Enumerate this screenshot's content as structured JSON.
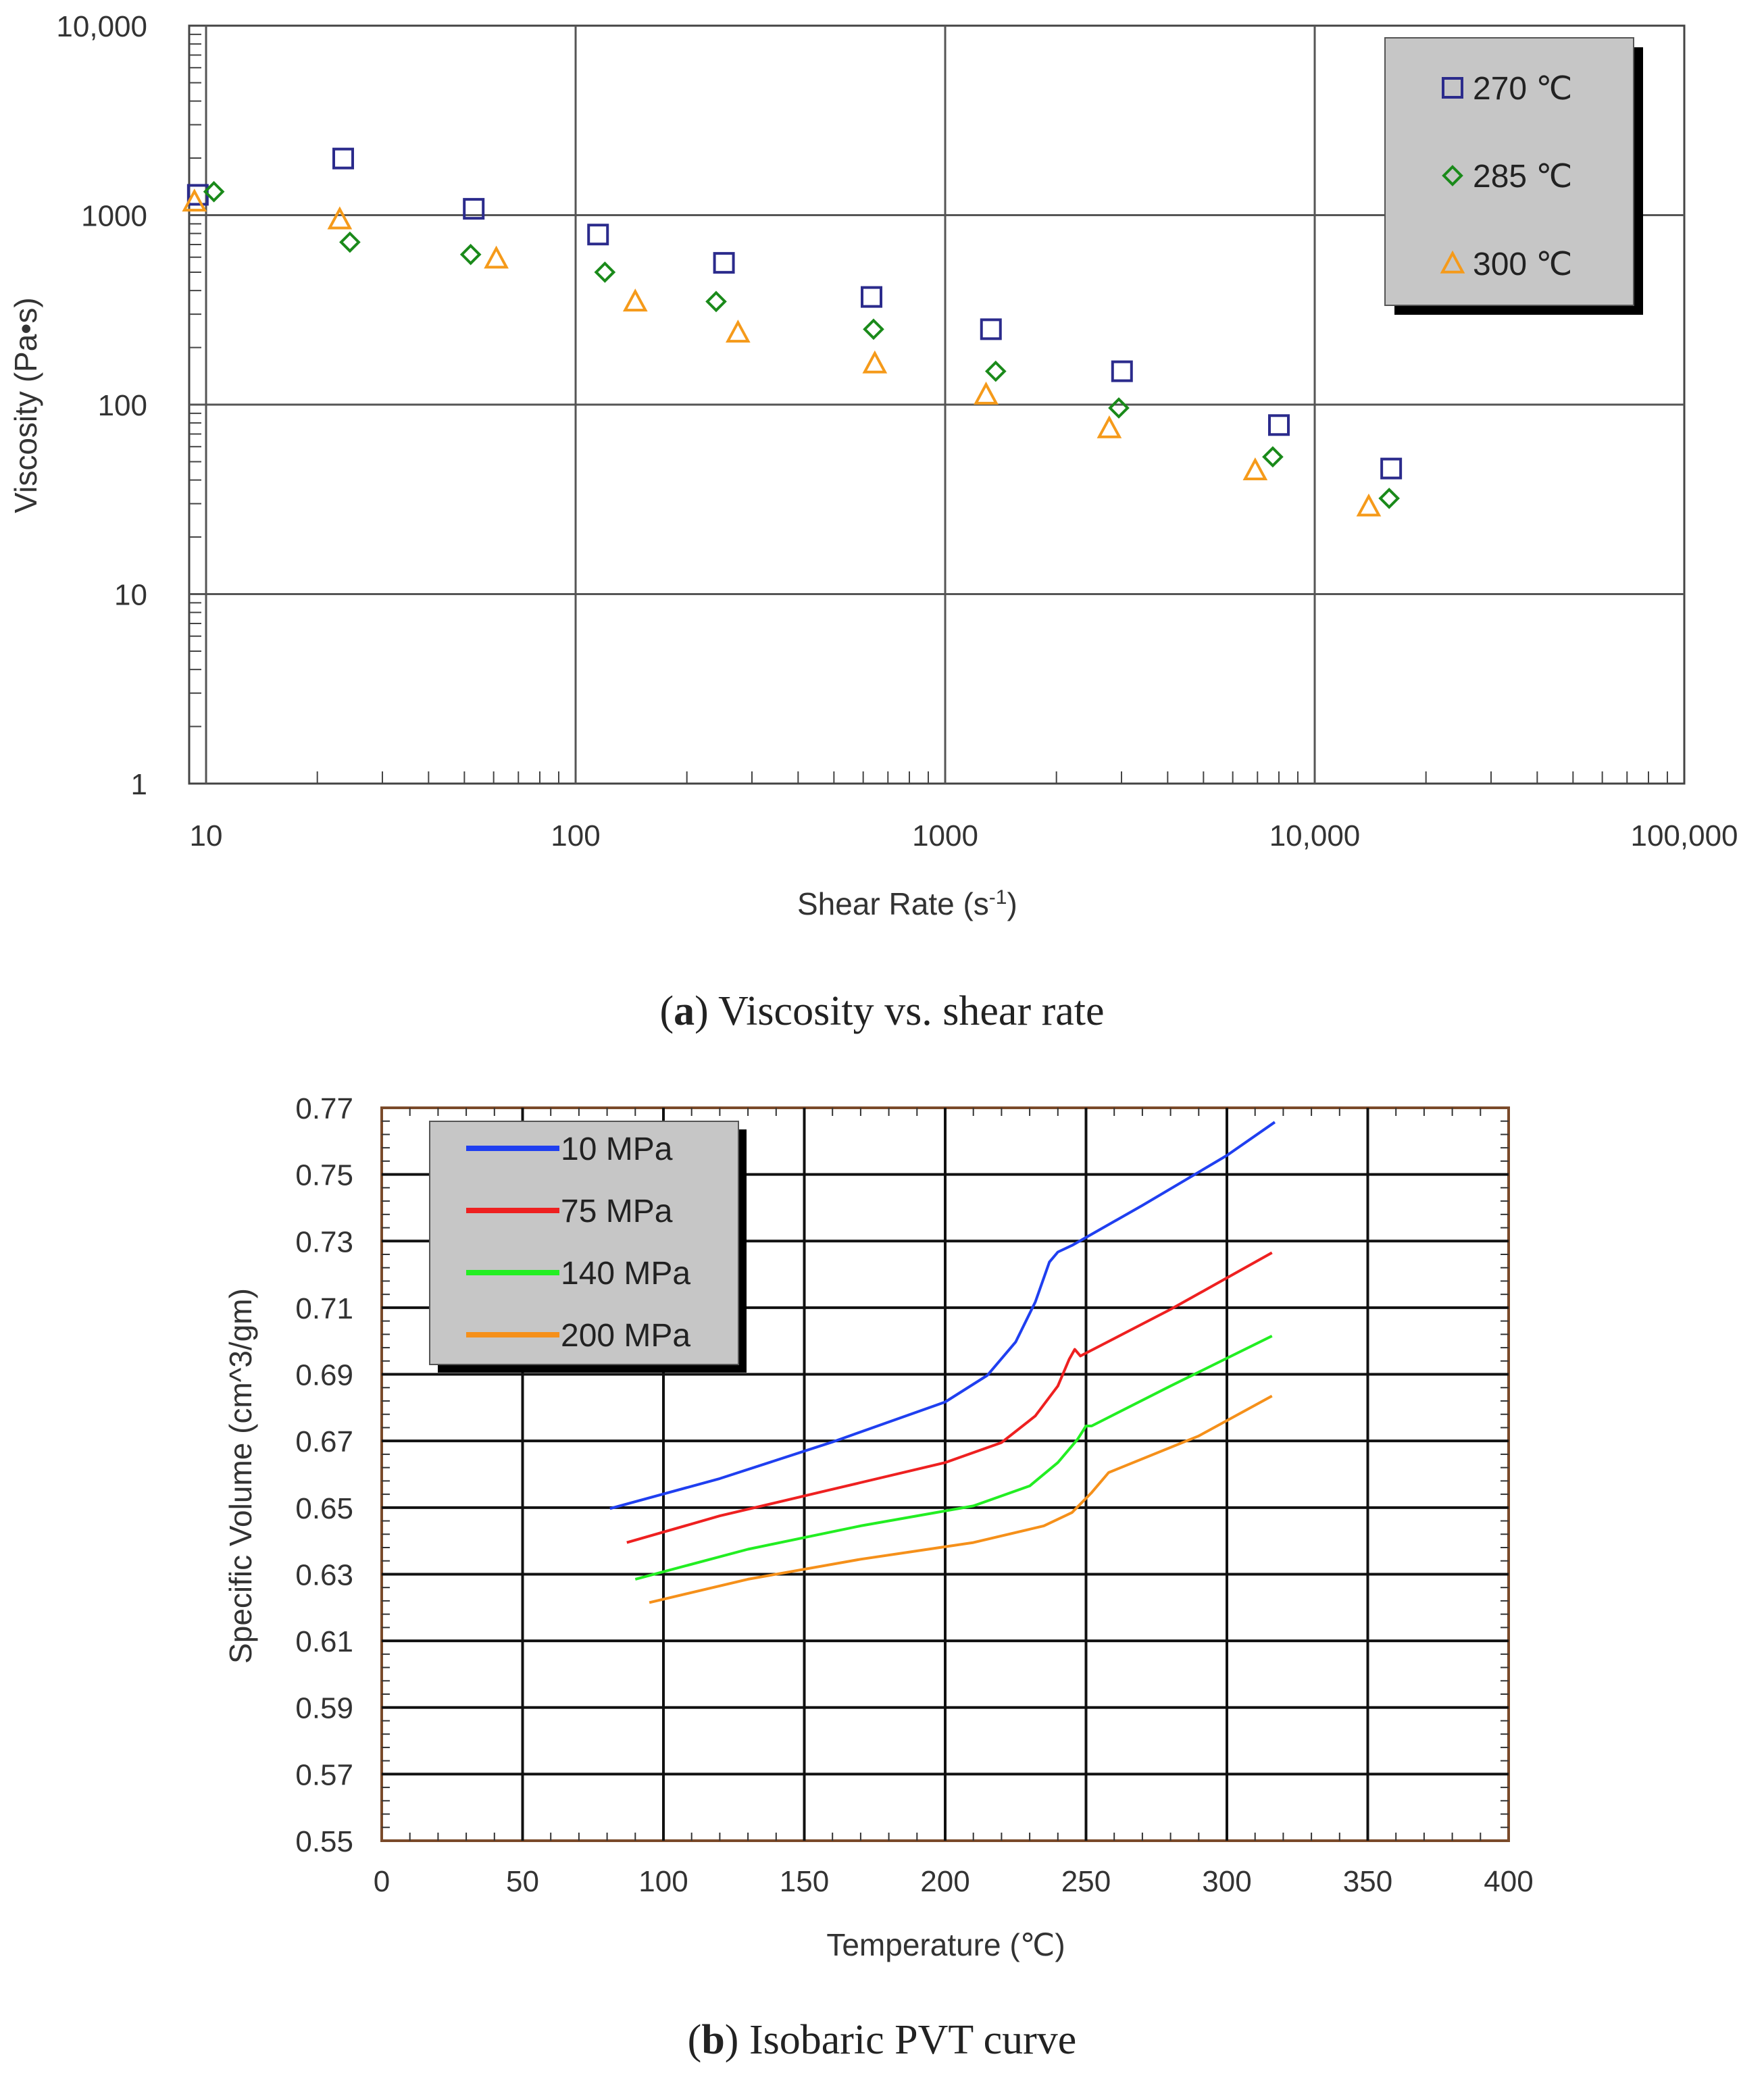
{
  "chart_data": [
    {
      "type": "scatter",
      "panel": "a",
      "caption_letter": "a",
      "caption_text": ") Viscosity vs. shear rate",
      "caption_open": "(",
      "xlabel": "Shear Rate (s",
      "xlabel_sup": "-1",
      "xlabel_close": ")",
      "ylabel": "Viscosity (Pa•s)",
      "xscale": "log",
      "yscale": "log",
      "xlim": [
        9,
        100000
      ],
      "ylim": [
        1,
        10000
      ],
      "x_ticks": [
        {
          "value": 10,
          "label": "10"
        },
        {
          "value": 100,
          "label": "100"
        },
        {
          "value": 1000,
          "label": "1000"
        },
        {
          "value": 10000,
          "label": "10,000"
        },
        {
          "value": 100000,
          "label": "100,000"
        }
      ],
      "y_ticks": [
        {
          "value": 1,
          "label": "1"
        },
        {
          "value": 10,
          "label": "10"
        },
        {
          "value": 100,
          "label": "100"
        },
        {
          "value": 1000,
          "label": "1000"
        },
        {
          "value": 10000,
          "label": "10,000"
        }
      ],
      "grid": true,
      "legend_position": "top-right",
      "series": [
        {
          "name": "270 ℃",
          "marker": "square",
          "color": "#2b2b8c",
          "x": [
            9.5,
            23.5,
            53,
            115,
            252,
            632,
            1330,
            3010,
            8000,
            16100
          ],
          "y": [
            1280,
            1990,
            1080,
            790,
            560,
            370,
            250,
            150,
            78,
            46
          ]
        },
        {
          "name": "285 ℃",
          "marker": "diamond",
          "color": "#1a8a1a",
          "x": [
            10.5,
            24.5,
            52,
            120,
            240,
            640,
            1370,
            2950,
            7700,
            15900
          ],
          "y": [
            1330,
            720,
            620,
            500,
            350,
            250,
            150,
            96,
            53,
            32
          ]
        },
        {
          "name": "300 ℃",
          "marker": "triangle",
          "color": "#f59a1a",
          "x": [
            9.3,
            23,
            61,
            145,
            275,
            645,
            1290,
            2780,
            6900,
            14000
          ],
          "y": [
            1180,
            950,
            590,
            350,
            240,
            165,
            113,
            75,
            45,
            29
          ]
        }
      ]
    },
    {
      "type": "line",
      "panel": "b",
      "caption_letter": "b",
      "caption_text": ") Isobaric PVT curve",
      "caption_open": "(",
      "xlabel": "Temperature (℃)",
      "ylabel": "Specific Volume (cm^3/gm)",
      "xlim": [
        0,
        400
      ],
      "ylim": [
        0.55,
        0.77
      ],
      "x_ticks": [
        0,
        50,
        100,
        150,
        200,
        250,
        300,
        350,
        400
      ],
      "y_ticks": [
        "0.55",
        "0.57",
        "0.59",
        "0.61",
        "0.63",
        "0.65",
        "0.67",
        "0.69",
        "0.71",
        "0.73",
        "0.75",
        "0.77"
      ],
      "grid": true,
      "legend_position": "top-left",
      "series": [
        {
          "name": "10 MPa",
          "color": "#1f3ff0",
          "x": [
            81,
            120,
            160,
            200,
            215,
            225,
            232,
            237,
            240,
            245,
            270,
            300,
            317
          ],
          "y": [
            0.6497,
            0.6587,
            0.6697,
            0.6817,
            0.6897,
            0.6997,
            0.7117,
            0.7237,
            0.7267,
            0.7287,
            0.7407,
            0.7557,
            0.7657
          ]
        },
        {
          "name": "75 MPa",
          "color": "#ee2020",
          "x": [
            87,
            120,
            160,
            200,
            220,
            232,
            240,
            244,
            246,
            248,
            280,
            316
          ],
          "y": [
            0.6395,
            0.6475,
            0.6555,
            0.6635,
            0.6695,
            0.6775,
            0.6865,
            0.6945,
            0.6975,
            0.6955,
            0.7095,
            0.7265
          ]
        },
        {
          "name": "140 MPa",
          "color": "#22ee22",
          "x": [
            90,
            130,
            170,
            210,
            230,
            240,
            247,
            250,
            252,
            280,
            316
          ],
          "y": [
            0.6285,
            0.6375,
            0.6445,
            0.6505,
            0.6565,
            0.6635,
            0.6705,
            0.6745,
            0.6745,
            0.6865,
            0.7015
          ]
        },
        {
          "name": "200 MPa",
          "color": "#f5901a",
          "x": [
            95,
            130,
            170,
            210,
            235,
            245,
            252,
            256,
            258,
            290,
            316
          ],
          "y": [
            0.6215,
            0.6285,
            0.6345,
            0.6395,
            0.6445,
            0.6485,
            0.6545,
            0.6585,
            0.6605,
            0.6715,
            0.6835
          ]
        }
      ]
    }
  ]
}
